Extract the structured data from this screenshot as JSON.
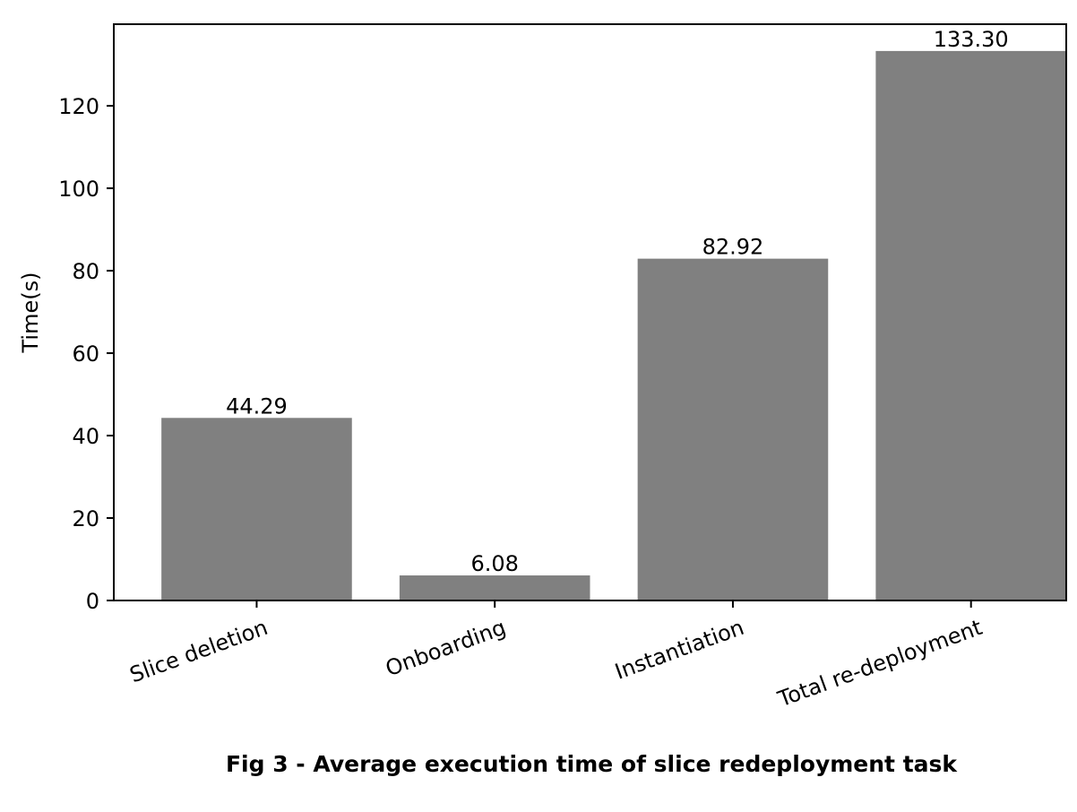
{
  "caption": "Fig 3 - Average execution time of slice redeployment task",
  "chart_data": {
    "type": "bar",
    "categories": [
      "Slice deletion",
      "Onboarding",
      "Instantiation",
      "Total re-deployment"
    ],
    "values": [
      44.29,
      6.08,
      82.92,
      133.3
    ],
    "data_labels": [
      "44.29",
      "6.08",
      "82.92",
      "133.30"
    ],
    "title": "",
    "xlabel": "",
    "ylabel": "Time(s)",
    "ylim": [
      0,
      139.8
    ],
    "yticks": [
      0,
      20,
      40,
      60,
      80,
      100,
      120
    ],
    "bar_color": "#808080",
    "grid": false,
    "legend": "none"
  }
}
